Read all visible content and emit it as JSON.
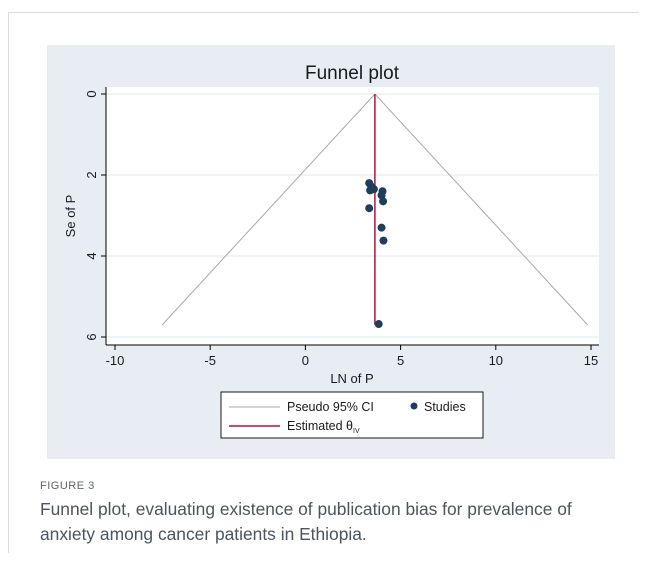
{
  "figure": {
    "label": "FIGURE 3",
    "caption": "Funnel plot, evaluating existence of publication bias for prevalence of anxiety among cancer patients in Ethiopia."
  },
  "colors": {
    "panel_background": "#e7edf3",
    "plot_background": "#ffffff",
    "points": "#1f3d5c",
    "estimate_line": "#b5103c",
    "ci_lines": "#a9a9a9"
  },
  "chart_data": {
    "type": "scatter",
    "title": "Funnel plot",
    "xlabel": "LN of P",
    "ylabel": "Se of P",
    "xlim": [
      -10,
      15
    ],
    "ylim": [
      0,
      6
    ],
    "y_reversed": true,
    "grid": true,
    "x_ticks": [
      "-10",
      "-5",
      "0",
      "5",
      "10",
      "15"
    ],
    "y_ticks": [
      "0",
      "2",
      "4",
      "6"
    ],
    "pooled_estimate": 3.65,
    "ci_bounds": {
      "z": 1.96,
      "se_max": 5.7
    },
    "points": [
      {
        "x": 3.35,
        "y": 2.2
      },
      {
        "x": 3.45,
        "y": 2.28
      },
      {
        "x": 3.4,
        "y": 2.38
      },
      {
        "x": 3.6,
        "y": 2.35
      },
      {
        "x": 4.05,
        "y": 2.4
      },
      {
        "x": 4.0,
        "y": 2.5
      },
      {
        "x": 4.08,
        "y": 2.65
      },
      {
        "x": 3.35,
        "y": 2.82
      },
      {
        "x": 4.0,
        "y": 3.3
      },
      {
        "x": 4.1,
        "y": 3.62
      },
      {
        "x": 3.85,
        "y": 5.68
      }
    ],
    "legend": {
      "position": "bottom",
      "items": [
        {
          "label": "Pseudo 95% CI",
          "marker": "line"
        },
        {
          "label": "Studies",
          "marker": "dot"
        },
        {
          "label": "Estimated θ",
          "subscript": "IV",
          "marker": "line"
        }
      ]
    }
  }
}
